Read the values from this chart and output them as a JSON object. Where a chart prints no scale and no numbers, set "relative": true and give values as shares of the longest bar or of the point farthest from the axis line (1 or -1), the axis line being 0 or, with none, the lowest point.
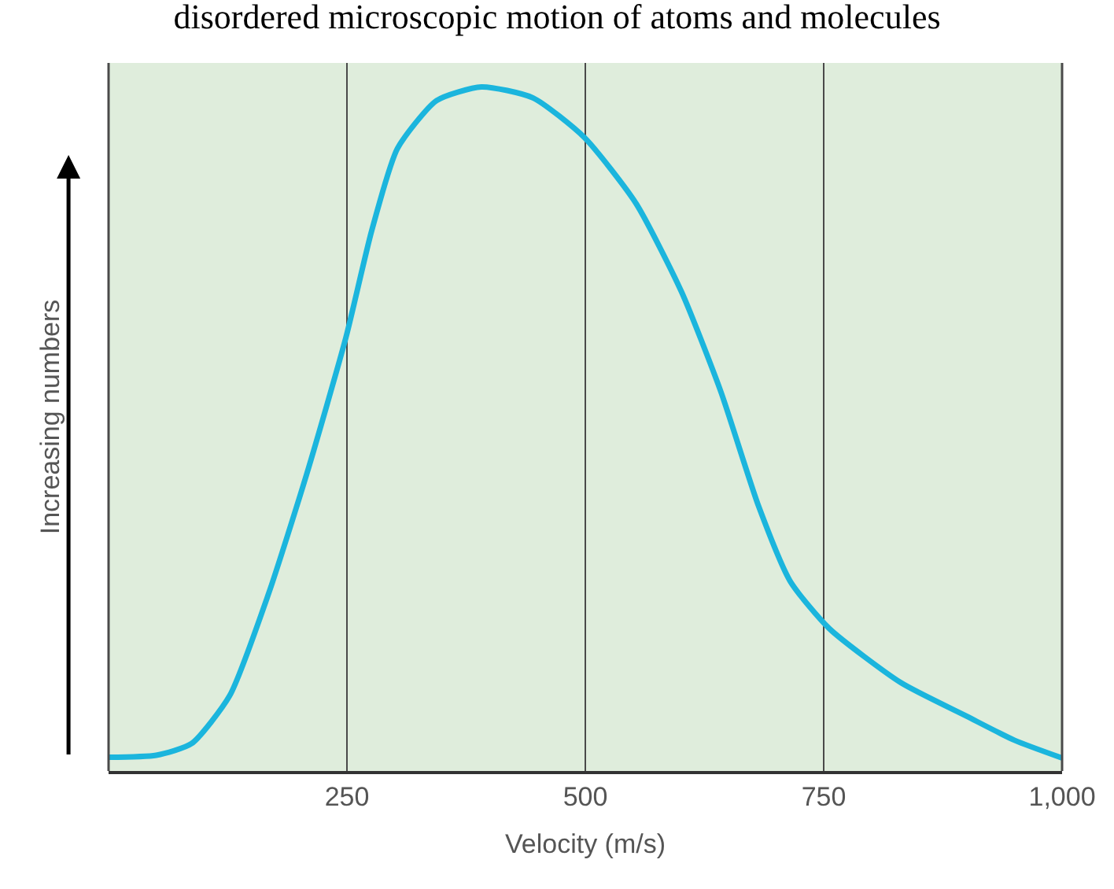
{
  "chart_data": {
    "type": "line",
    "title": "disordered microscopic motion of atoms and molecules",
    "xlabel": "Velocity (m/s)",
    "ylabel": "Increasing numbers",
    "relative": true,
    "x": [
      0,
      50,
      87,
      127,
      168,
      208,
      249,
      276,
      303,
      344,
      391,
      445,
      499,
      553,
      601,
      642,
      682,
      715,
      756,
      831,
      900,
      950,
      1000
    ],
    "series": [
      {
        "color": "#1bb5dd",
        "values": [
          0.02,
          0.023,
          0.04,
          0.11,
          0.26,
          0.435,
          0.634,
          0.79,
          0.91,
          0.98,
          1.0,
          0.984,
          0.926,
          0.83,
          0.7,
          0.555,
          0.386,
          0.277,
          0.208,
          0.129,
          0.08,
          0.045,
          0.019
        ]
      }
    ],
    "xlim": [
      0,
      1000
    ],
    "xticks": [
      250,
      500,
      750,
      {
        "value": 1000,
        "label": "1,000"
      }
    ],
    "grid": "x",
    "marker": "none",
    "line_style": "solid"
  }
}
